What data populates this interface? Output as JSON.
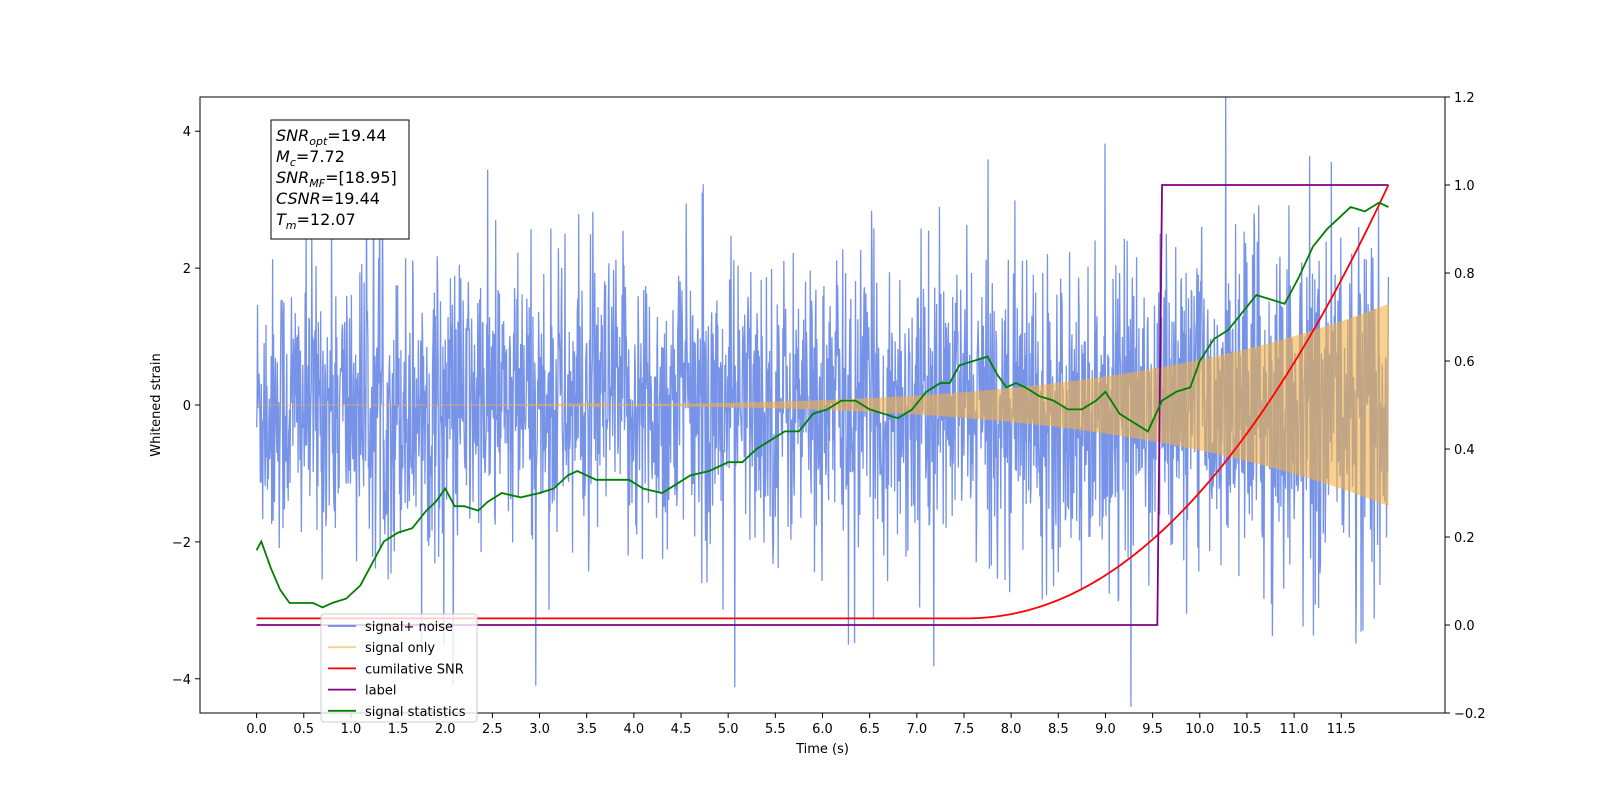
{
  "chart_data": {
    "type": "line",
    "xlabel": "Time (s)",
    "ylabel_left": "Whitened strain",
    "ylabel_right": "",
    "xlim": [
      -0.6,
      12.6
    ],
    "ylim_left": [
      -4.5,
      4.5
    ],
    "ylim_right": [
      -0.2,
      1.2
    ],
    "x_ticks": [
      "0.0",
      "0.5",
      "1.0",
      "1.5",
      "2.0",
      "2.5",
      "3.0",
      "3.5",
      "4.0",
      "4.5",
      "5.0",
      "5.5",
      "6.0",
      "6.5",
      "7.0",
      "7.5",
      "8.0",
      "8.5",
      "9.0",
      "9.5",
      "10.0",
      "10.5",
      "11.0",
      "11.5"
    ],
    "y_ticks_left": [
      "4",
      "2",
      "0",
      "−2",
      "−4"
    ],
    "y_ticks_right": [
      "1.2",
      "1.0",
      "0.8",
      "0.6",
      "0.4",
      "0.2",
      "0.0",
      "−0.2"
    ],
    "grid": false,
    "legend_position": "lower-left",
    "info_box": {
      "lines": [
        {
          "sym": "SNR",
          "sub": "opt",
          "val": "=19.44"
        },
        {
          "sym": "M",
          "sub": "c",
          "val": "=7.72"
        },
        {
          "sym": "SNR",
          "sub": "MF",
          "val": "=[18.95]"
        },
        {
          "sym": "CSNR",
          "sub": "",
          "val": "=19.44"
        },
        {
          "sym": "T",
          "sub": "m",
          "val": "=12.07"
        }
      ]
    },
    "series": [
      {
        "name": "signal+ noise",
        "axis": "left",
        "color": "#6b8ae6",
        "description": "noisy whitened strain, amplitude roughly ±3 to ±4 across 0–12 s"
      },
      {
        "name": "signal only",
        "axis": "left",
        "color": "#f5b041",
        "description": "chirp whose envelope grows from ~0 to ~1.35 at 12.07 s"
      },
      {
        "name": "cumilative SNR",
        "axis": "right",
        "x": [
          0.0,
          7.5,
          7.9,
          8.3,
          8.7,
          9.1,
          9.5,
          9.9,
          10.3,
          10.7,
          11.1,
          11.5,
          11.8,
          12.0
        ],
        "y": [
          0.015,
          0.015,
          0.03,
          0.07,
          0.12,
          0.17,
          0.22,
          0.27,
          0.34,
          0.44,
          0.56,
          0.71,
          0.84,
          1.0
        ],
        "color": "#ff0000"
      },
      {
        "name": "label",
        "axis": "right",
        "x": [
          0.0,
          9.55,
          9.6,
          12.0
        ],
        "y": [
          0.0,
          0.0,
          1.0,
          1.0
        ],
        "color": "#800080"
      },
      {
        "name": "signal statistics",
        "axis": "right",
        "x": [
          0.0,
          0.05,
          0.15,
          0.25,
          0.35,
          0.5,
          0.6,
          0.7,
          0.8,
          0.95,
          1.1,
          1.2,
          1.35,
          1.5,
          1.65,
          1.8,
          1.9,
          2.0,
          2.1,
          2.2,
          2.35,
          2.45,
          2.6,
          2.8,
          3.0,
          3.15,
          3.3,
          3.4,
          3.6,
          3.8,
          3.95,
          4.1,
          4.3,
          4.45,
          4.6,
          4.8,
          5.0,
          5.15,
          5.3,
          5.45,
          5.6,
          5.75,
          5.9,
          6.05,
          6.2,
          6.35,
          6.5,
          6.65,
          6.8,
          6.95,
          7.1,
          7.25,
          7.35,
          7.45,
          7.6,
          7.75,
          7.85,
          7.95,
          8.05,
          8.15,
          8.3,
          8.45,
          8.6,
          8.75,
          8.9,
          9.0,
          9.15,
          9.3,
          9.45,
          9.6,
          9.75,
          9.9,
          10.0,
          10.15,
          10.3,
          10.45,
          10.6,
          10.75,
          10.9,
          11.05,
          11.2,
          11.35,
          11.5,
          11.6,
          11.75,
          11.9,
          12.0
        ],
        "y": [
          0.17,
          0.19,
          0.13,
          0.08,
          0.05,
          0.05,
          0.05,
          0.04,
          0.05,
          0.06,
          0.09,
          0.13,
          0.19,
          0.21,
          0.22,
          0.26,
          0.28,
          0.31,
          0.27,
          0.27,
          0.26,
          0.28,
          0.3,
          0.29,
          0.3,
          0.31,
          0.34,
          0.35,
          0.33,
          0.33,
          0.33,
          0.31,
          0.3,
          0.32,
          0.34,
          0.35,
          0.37,
          0.37,
          0.4,
          0.42,
          0.44,
          0.44,
          0.48,
          0.49,
          0.51,
          0.51,
          0.49,
          0.48,
          0.47,
          0.49,
          0.53,
          0.55,
          0.55,
          0.59,
          0.6,
          0.61,
          0.57,
          0.54,
          0.55,
          0.54,
          0.52,
          0.51,
          0.49,
          0.49,
          0.51,
          0.53,
          0.48,
          0.46,
          0.44,
          0.51,
          0.53,
          0.54,
          0.6,
          0.65,
          0.67,
          0.71,
          0.75,
          0.74,
          0.73,
          0.79,
          0.86,
          0.9,
          0.93,
          0.95,
          0.94,
          0.96,
          0.95
        ],
        "color": "#008000"
      }
    ]
  }
}
